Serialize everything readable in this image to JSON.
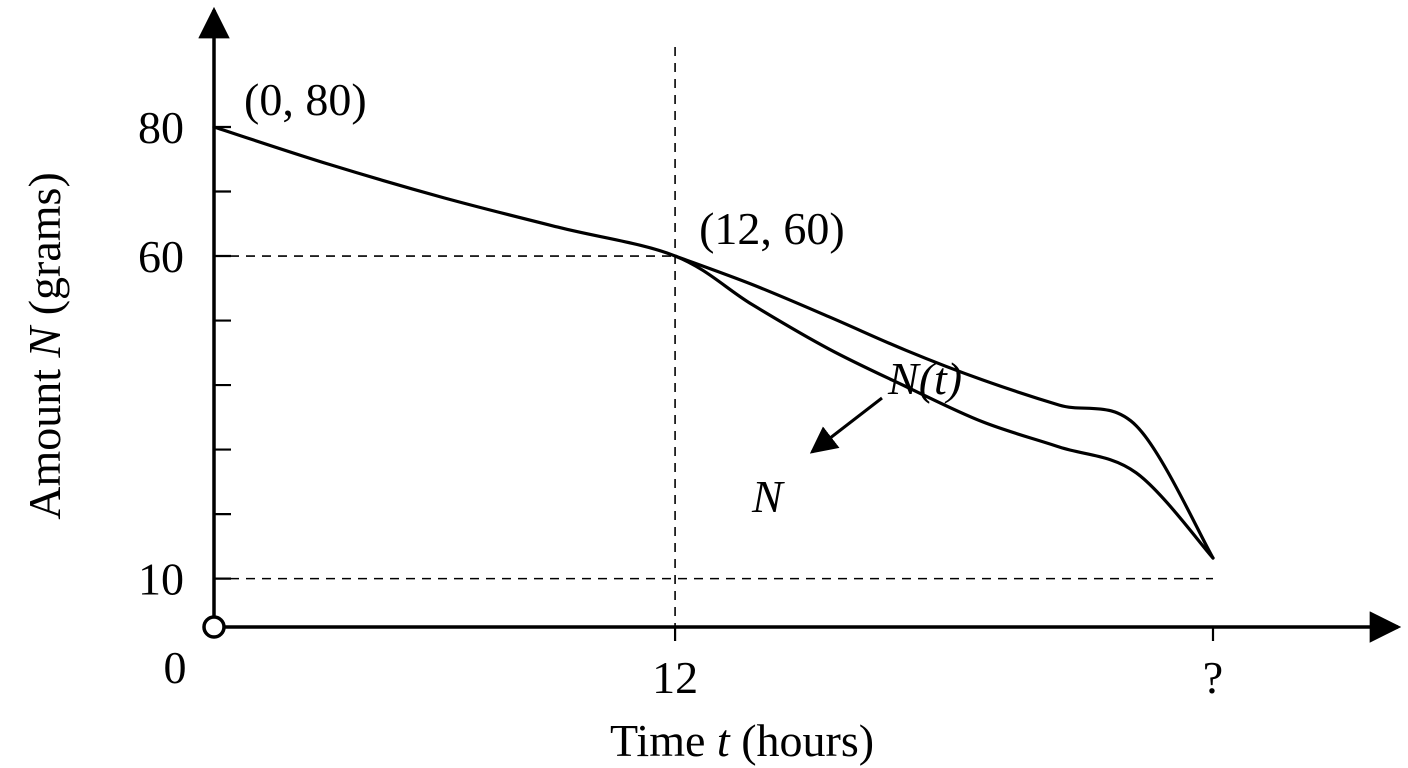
{
  "chart_data": {
    "type": "line",
    "xlabel_prefix": "Time ",
    "xlabel_var": "t",
    "xlabel_suffix": " (hours)",
    "ylabel_prefix": "Amount ",
    "ylabel_var": "N",
    "ylabel_suffix": " (grams)",
    "origin_label": "0",
    "x_ticks": [
      {
        "value": 12,
        "label": "12"
      },
      {
        "value": 26,
        "label": "?"
      }
    ],
    "y_ticks": [
      {
        "value": 10,
        "label": "10"
      },
      {
        "value": 20,
        "label": ""
      },
      {
        "value": 30,
        "label": ""
      },
      {
        "value": 40,
        "label": ""
      },
      {
        "value": 50,
        "label": ""
      },
      {
        "value": 60,
        "label": "60"
      },
      {
        "value": 70,
        "label": ""
      },
      {
        "value": 80,
        "label": "80"
      }
    ],
    "xlim": [
      0,
      30.5
    ],
    "ylim": [
      2.5,
      91
    ],
    "reference_lines": [
      {
        "orientation": "vertical",
        "x": 12
      },
      {
        "orientation": "horizontal",
        "y": 60
      },
      {
        "orientation": "horizontal",
        "y": 10
      }
    ],
    "labeled_points": [
      {
        "x": 0,
        "y": 80,
        "label": "(0, 80)"
      },
      {
        "x": 12,
        "y": 60,
        "label": "(12, 60)"
      }
    ],
    "series": [
      {
        "name": "N",
        "x": [
          0,
          3,
          6,
          9,
          12,
          14,
          16,
          18,
          20,
          22,
          24,
          26
        ],
        "y": [
          80,
          74.2,
          69,
          64.4,
          60,
          52.5,
          45.6,
          39.8,
          34.3,
          30.4,
          26.4,
          10.9
        ]
      },
      {
        "name": "N(t)",
        "x": [
          12,
          14,
          16,
          18,
          20,
          22,
          24,
          26
        ],
        "y": [
          60,
          55.6,
          50.6,
          45.4,
          40.8,
          36.9,
          33.7,
          10.9
        ]
      }
    ],
    "annotations": [
      {
        "text_var": "N",
        "text_suffix": "(t)",
        "target_series": "N(t)",
        "arrow": true
      },
      {
        "text_var": "N",
        "text_suffix": "",
        "target_series": "N",
        "arrow": false
      }
    ]
  }
}
